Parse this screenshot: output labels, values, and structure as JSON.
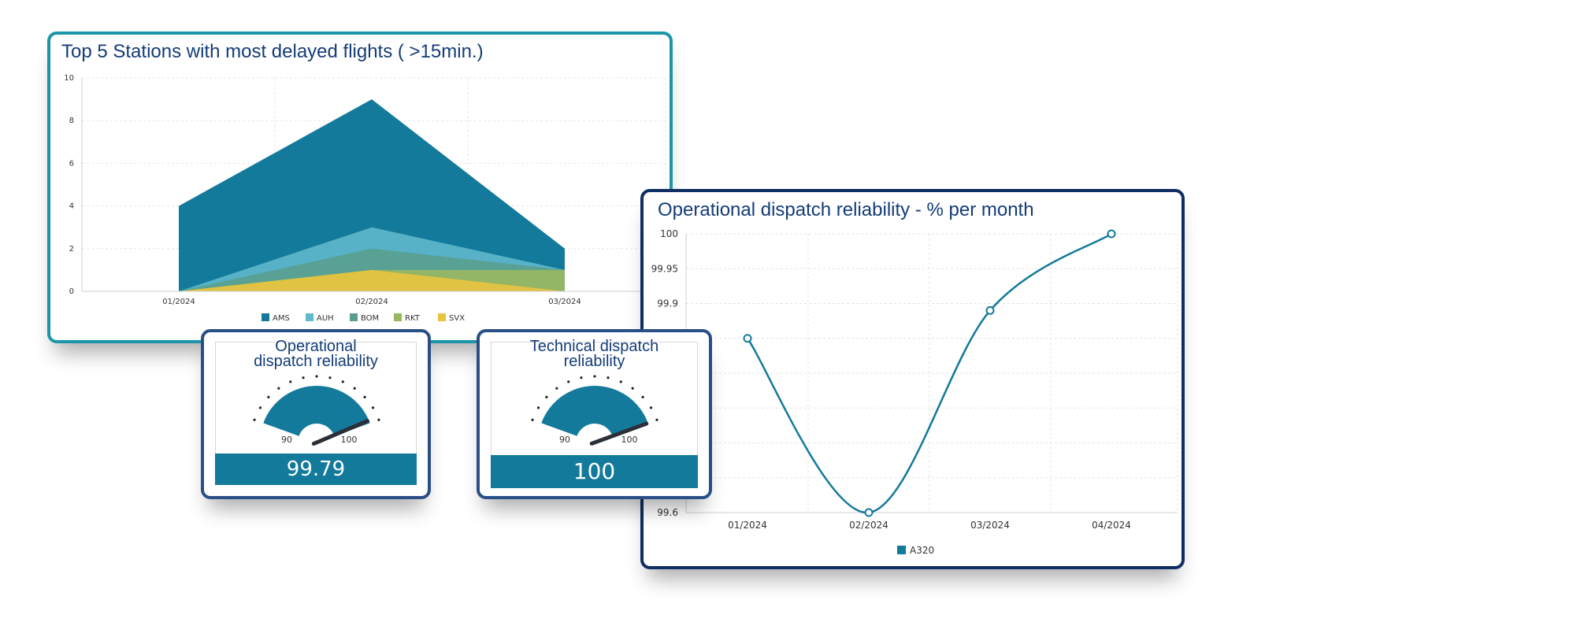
{
  "colors": {
    "ams": "#137a9b",
    "auh": "#5fb8cc",
    "bom": "#5a9f8e",
    "rkt": "#99b760",
    "svx": "#e9c43f",
    "teal_border": "#1c95a8",
    "navy_border": "#0f2e63",
    "gauge_border": "#2a4f86",
    "title_text": "#143c78",
    "value_fill": "#137a9b"
  },
  "area_card": {
    "title": "Top 5 Stations with most delayed flights ( >15min.)"
  },
  "line_card": {
    "title": "Operational dispatch reliability - % per month"
  },
  "gauge_operational": {
    "title_line1": "Operational",
    "title_line2": "dispatch reliability",
    "min_label": "90",
    "max_label": "100",
    "value": "99.79"
  },
  "gauge_technical": {
    "title_line1": "Technical dispatch",
    "title_line2": "reliability",
    "min_label": "90",
    "max_label": "100",
    "value": "100"
  },
  "chart_data": [
    {
      "type": "area",
      "title": "Top 5 Stations with most delayed flights ( >15min.)",
      "categories": [
        "01/2024",
        "02/2024",
        "03/2024"
      ],
      "ylim": [
        0,
        10
      ],
      "yticks": [
        "0",
        "2",
        "4",
        "6",
        "8",
        "10"
      ],
      "grid": true,
      "legend_position": "bottom",
      "series": [
        {
          "name": "AMS",
          "values": [
            4,
            9,
            2
          ]
        },
        {
          "name": "AUH",
          "values": [
            0,
            3,
            1
          ]
        },
        {
          "name": "BOM",
          "values": [
            0,
            2,
            1
          ]
        },
        {
          "name": "RKT",
          "values": [
            0,
            1,
            1
          ]
        },
        {
          "name": "SVX",
          "values": [
            0,
            1,
            0
          ]
        }
      ]
    },
    {
      "type": "line",
      "title": "Operational dispatch reliability - % per month",
      "categories": [
        "01/2024",
        "02/2024",
        "03/2024",
        "04/2024"
      ],
      "ylim": [
        99.6,
        100
      ],
      "yticks": [
        "99.6",
        "99.9",
        "99.95",
        "100"
      ],
      "grid": true,
      "legend_position": "bottom",
      "series": [
        {
          "name": "A320",
          "values": [
            99.85,
            99.6,
            99.89,
            100
          ]
        }
      ]
    },
    {
      "type": "gauge",
      "title": "Operational dispatch reliability",
      "min": 90,
      "max": 100,
      "value": 99.79
    },
    {
      "type": "gauge",
      "title": "Technical dispatch reliability",
      "min": 90,
      "max": 100,
      "value": 100
    }
  ]
}
